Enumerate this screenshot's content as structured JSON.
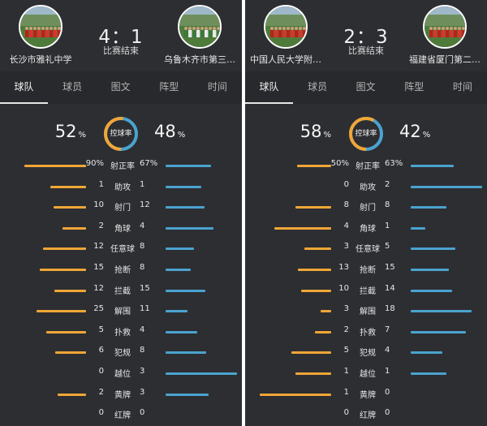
{
  "colors": {
    "home_bar": "#f0a637",
    "away_bar": "#4aa3cf",
    "background": "#2d2e32"
  },
  "panels": [
    {
      "home_team": {
        "name": "长沙市雅礼中学",
        "logo": "team-photo-icon"
      },
      "away_team": {
        "name": "乌鲁木齐市第三…",
        "logo": "team-photo-icon"
      },
      "score": "4：1",
      "status": "比赛结束",
      "tabs": [
        "球队",
        "球员",
        "图文",
        "阵型",
        "时间"
      ],
      "active_tab": 0,
      "possession": {
        "home": "52",
        "away": "48",
        "unit": "%",
        "label": "控球率",
        "home_fraction": 0.52
      },
      "stats": [
        {
          "label": "射正率",
          "home": "90%",
          "away": "67%",
          "home_num": 90,
          "away_num": 67
        },
        {
          "label": "助攻",
          "home": "1",
          "away": "1",
          "home_num": 1,
          "away_num": 1
        },
        {
          "label": "射门",
          "home": "10",
          "away": "12",
          "home_num": 10,
          "away_num": 12
        },
        {
          "label": "角球",
          "home": "2",
          "away": "4",
          "home_num": 2,
          "away_num": 4
        },
        {
          "label": "任意球",
          "home": "12",
          "away": "8",
          "home_num": 12,
          "away_num": 8
        },
        {
          "label": "抢断",
          "home": "15",
          "away": "8",
          "home_num": 15,
          "away_num": 8
        },
        {
          "label": "拦截",
          "home": "12",
          "away": "15",
          "home_num": 12,
          "away_num": 15
        },
        {
          "label": "解围",
          "home": "25",
          "away": "11",
          "home_num": 25,
          "away_num": 11
        },
        {
          "label": "扑救",
          "home": "5",
          "away": "4",
          "home_num": 5,
          "away_num": 4
        },
        {
          "label": "犯规",
          "home": "6",
          "away": "8",
          "home_num": 6,
          "away_num": 8
        },
        {
          "label": "越位",
          "home": "0",
          "away": "3",
          "home_num": 0,
          "away_num": 3
        },
        {
          "label": "黄牌",
          "home": "2",
          "away": "3",
          "home_num": 2,
          "away_num": 3
        },
        {
          "label": "红牌",
          "home": "0",
          "away": "0",
          "home_num": 0,
          "away_num": 0
        }
      ]
    },
    {
      "home_team": {
        "name": "中国人民大学附…",
        "logo": "team-photo-icon"
      },
      "away_team": {
        "name": "福建省厦门第二…",
        "logo": "team-photo-icon"
      },
      "score": "2：3",
      "status": "比赛结束",
      "tabs": [
        "球队",
        "球员",
        "图文",
        "阵型",
        "时间"
      ],
      "active_tab": 0,
      "possession": {
        "home": "58",
        "away": "42",
        "unit": "%",
        "label": "控球率",
        "home_fraction": 0.58
      },
      "stats": [
        {
          "label": "射正率",
          "home": "50%",
          "away": "63%",
          "home_num": 50,
          "away_num": 63
        },
        {
          "label": "助攻",
          "home": "0",
          "away": "2",
          "home_num": 0,
          "away_num": 2
        },
        {
          "label": "射门",
          "home": "8",
          "away": "8",
          "home_num": 8,
          "away_num": 8
        },
        {
          "label": "角球",
          "home": "4",
          "away": "1",
          "home_num": 4,
          "away_num": 1
        },
        {
          "label": "任意球",
          "home": "3",
          "away": "5",
          "home_num": 3,
          "away_num": 5
        },
        {
          "label": "抢断",
          "home": "13",
          "away": "15",
          "home_num": 13,
          "away_num": 15
        },
        {
          "label": "拦截",
          "home": "10",
          "away": "14",
          "home_num": 10,
          "away_num": 14
        },
        {
          "label": "解围",
          "home": "3",
          "away": "18",
          "home_num": 3,
          "away_num": 18
        },
        {
          "label": "扑救",
          "home": "2",
          "away": "7",
          "home_num": 2,
          "away_num": 7
        },
        {
          "label": "犯规",
          "home": "5",
          "away": "4",
          "home_num": 5,
          "away_num": 4
        },
        {
          "label": "越位",
          "home": "1",
          "away": "1",
          "home_num": 1,
          "away_num": 1
        },
        {
          "label": "黄牌",
          "home": "1",
          "away": "0",
          "home_num": 1,
          "away_num": 0
        },
        {
          "label": "红牌",
          "home": "0",
          "away": "0",
          "home_num": 0,
          "away_num": 0
        }
      ]
    }
  ]
}
